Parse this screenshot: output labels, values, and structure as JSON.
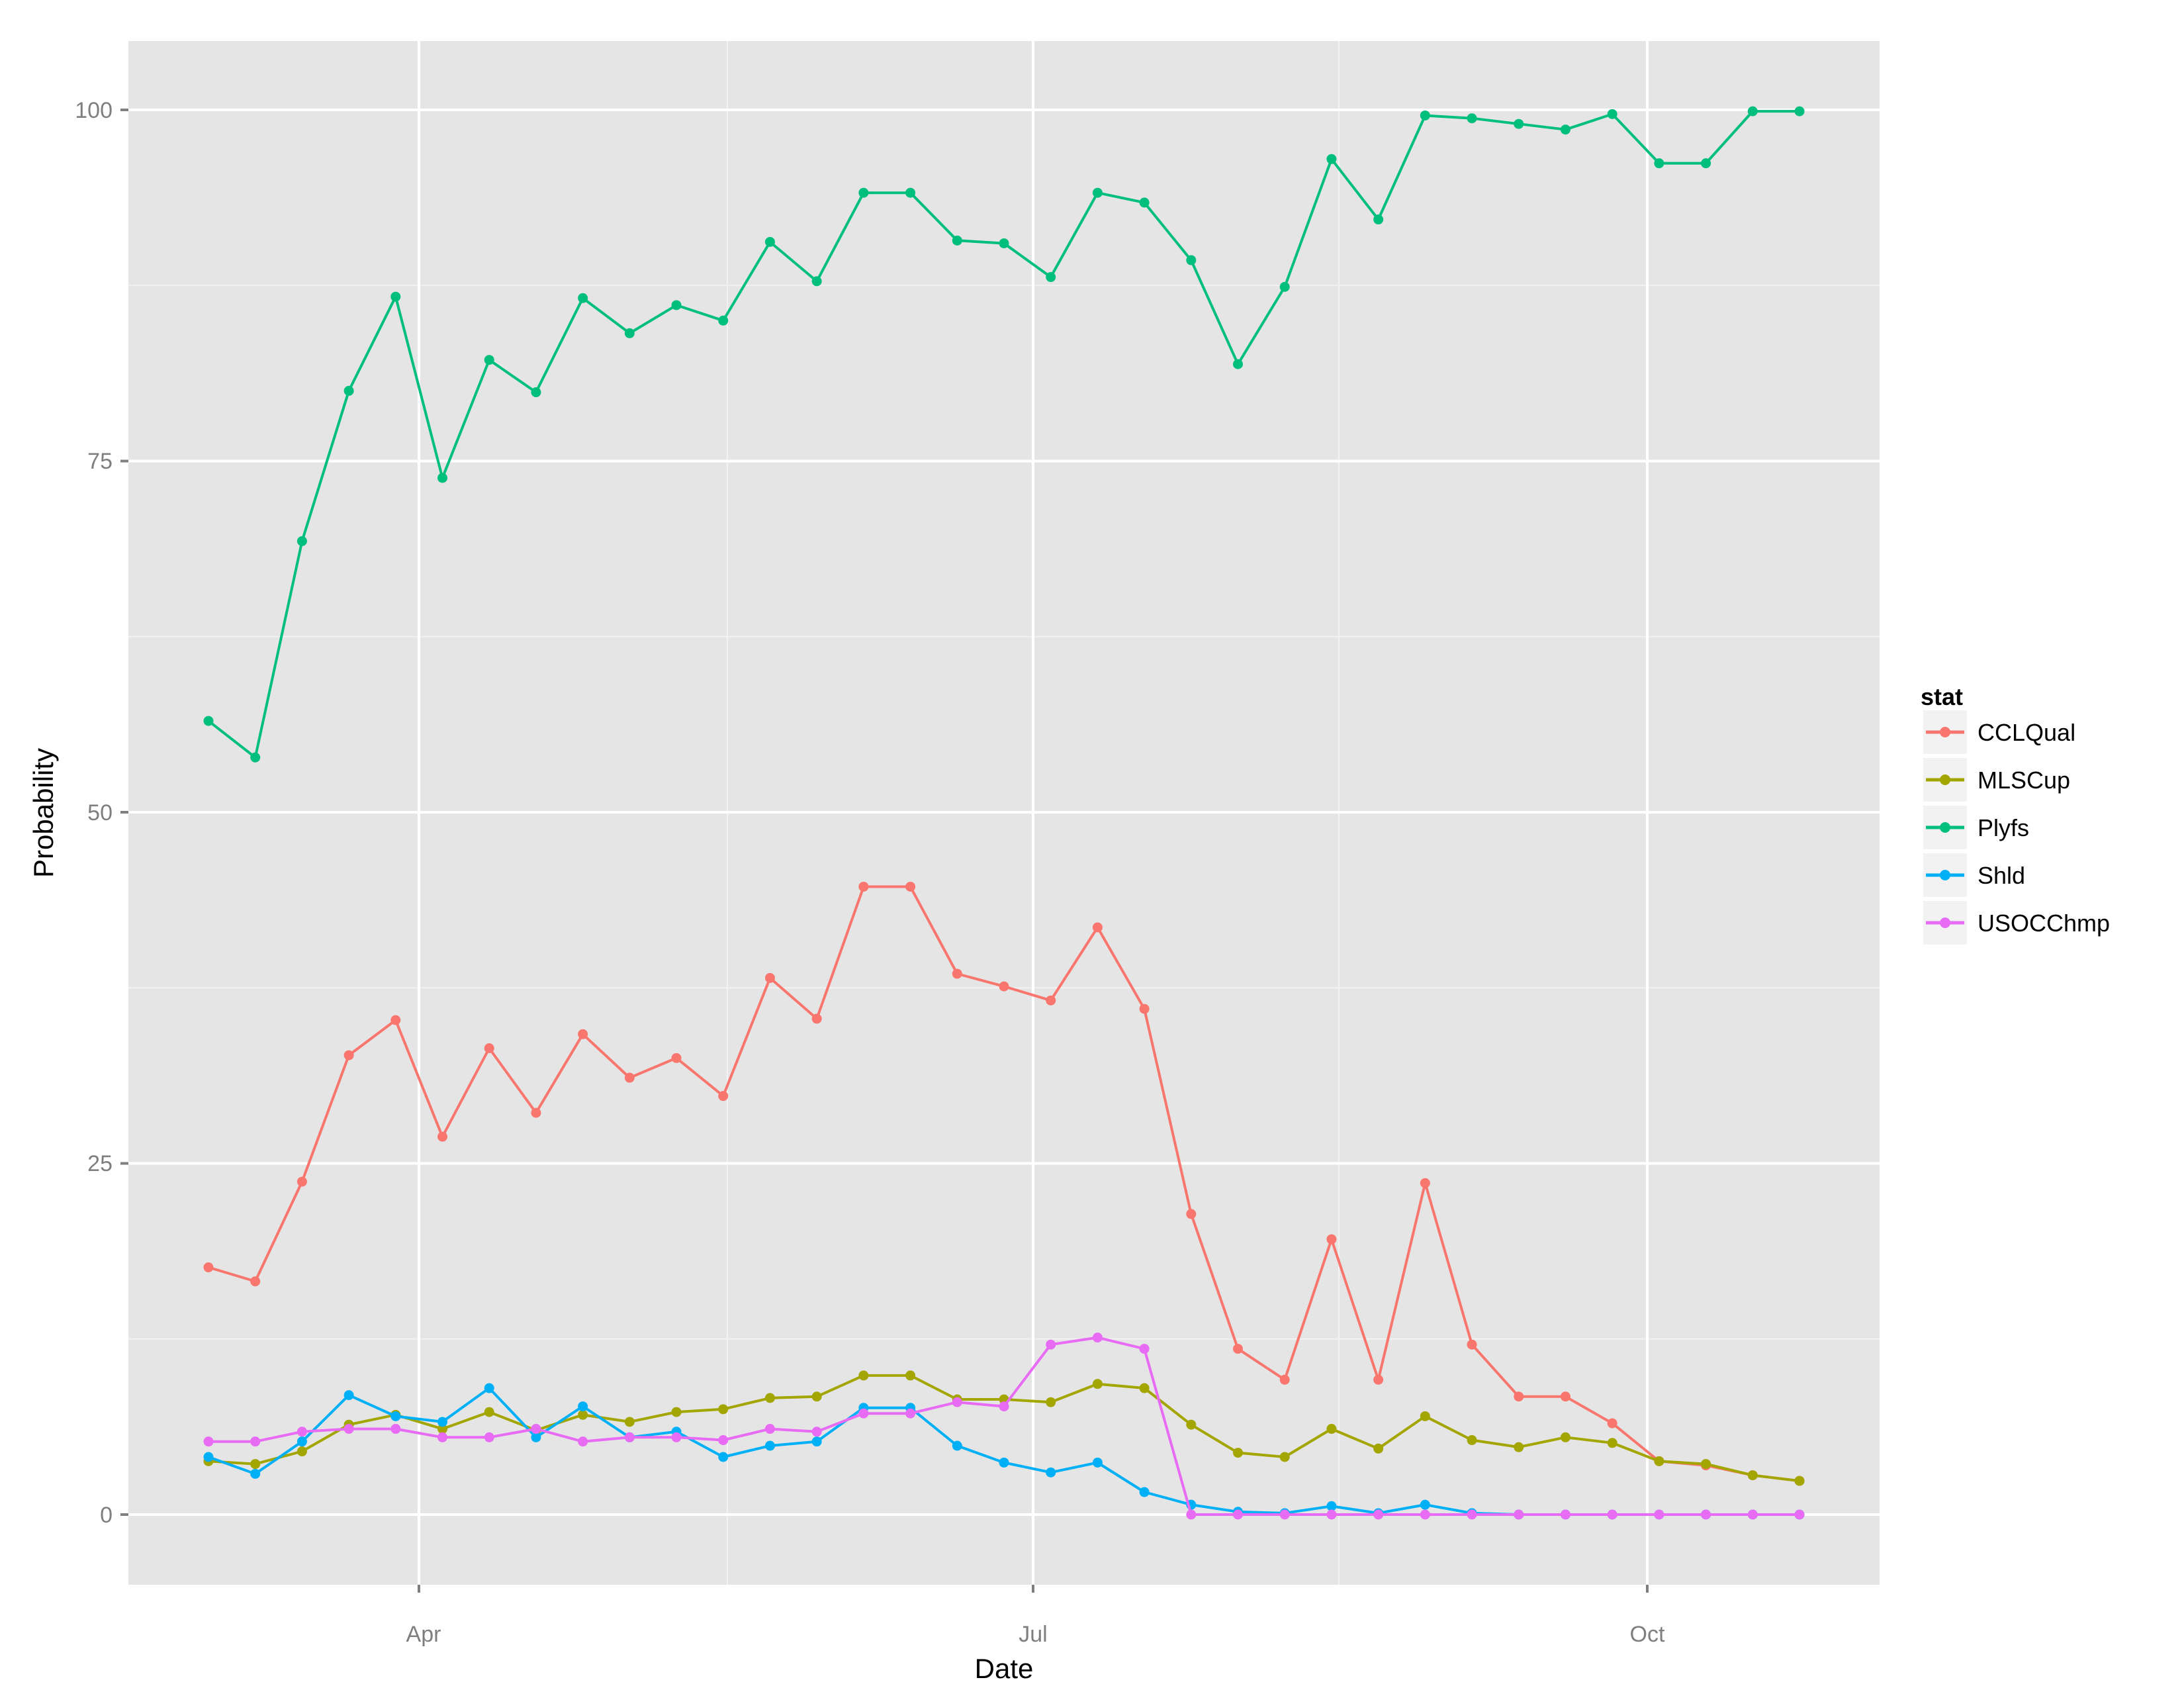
{
  "chart_data": {
    "type": "line",
    "title": "",
    "xlabel": "Date",
    "ylabel": "Probability",
    "ylim": [
      -5,
      105
    ],
    "y_ticks": [
      0,
      25,
      50,
      75,
      100
    ],
    "x_tick_labels": [
      "Apr",
      "Jul",
      "Oct"
    ],
    "grid": true,
    "legend_title": "stat",
    "legend_position": "right",
    "n_points": 35,
    "series": [
      {
        "name": "CCLQual",
        "color": "#F8766D",
        "values": [
          17.6,
          16.6,
          23.7,
          32.7,
          35.2,
          26.9,
          33.2,
          28.6,
          34.2,
          31.1,
          32.5,
          29.8,
          38.2,
          35.3,
          44.7,
          44.7,
          38.5,
          37.6,
          36.6,
          41.8,
          36.0,
          21.4,
          11.8,
          9.6,
          19.6,
          9.6,
          23.6,
          12.1,
          8.4,
          8.4,
          6.5,
          3.8,
          3.5,
          2.8,
          2.4
        ]
      },
      {
        "name": "MLSCup",
        "color": "#A3A500",
        "values": [
          3.8,
          3.6,
          4.5,
          6.4,
          7.1,
          6.1,
          7.3,
          6.0,
          7.1,
          6.6,
          7.3,
          7.5,
          8.3,
          8.4,
          9.9,
          9.9,
          8.2,
          8.2,
          8.0,
          9.3,
          9.0,
          6.4,
          4.4,
          4.1,
          6.1,
          4.7,
          7.0,
          5.3,
          4.8,
          5.5,
          5.1,
          3.8,
          3.6,
          2.8,
          2.4
        ]
      },
      {
        "name": "Plyfs",
        "color": "#00BF7D",
        "values": [
          56.5,
          53.9,
          69.3,
          80.0,
          86.7,
          73.8,
          82.2,
          79.9,
          86.6,
          84.1,
          86.1,
          85.0,
          90.6,
          87.8,
          94.1,
          94.1,
          90.7,
          90.5,
          88.1,
          94.1,
          93.4,
          89.3,
          81.9,
          87.4,
          96.5,
          92.2,
          99.6,
          99.4,
          99.0,
          98.6,
          99.7,
          96.2,
          96.2,
          99.9,
          99.9
        ]
      },
      {
        "name": "Shld",
        "color": "#00B0F6",
        "values": [
          4.1,
          2.9,
          5.2,
          8.5,
          7.0,
          6.6,
          9.0,
          5.5,
          7.7,
          5.5,
          5.9,
          4.1,
          4.9,
          5.2,
          7.6,
          7.6,
          4.9,
          3.7,
          3.0,
          3.7,
          1.6,
          0.7,
          0.2,
          0.1,
          0.6,
          0.1,
          0.7,
          0.1,
          0,
          0,
          0,
          0,
          0,
          0,
          0
        ]
      },
      {
        "name": "USOCChmp",
        "color": "#E76BF3",
        "values": [
          5.2,
          5.2,
          5.9,
          6.1,
          6.1,
          5.5,
          5.5,
          6.1,
          5.2,
          5.5,
          5.5,
          5.3,
          6.1,
          5.9,
          7.2,
          7.2,
          8.0,
          7.7,
          12.1,
          12.6,
          11.8,
          0,
          0,
          0,
          0,
          0,
          0,
          0,
          0,
          0,
          0,
          0,
          0,
          0,
          0
        ]
      }
    ]
  },
  "axes": {
    "x_title": "Date",
    "y_title": "Probability",
    "y_tick_labels": [
      "0",
      "25",
      "50",
      "75",
      "100"
    ],
    "x_tick_labels": [
      "Apr",
      "Jul",
      "Oct"
    ]
  },
  "legend": {
    "title": "stat",
    "items": [
      "CCLQual",
      "MLSCup",
      "Plyfs",
      "Shld",
      "USOCChmp"
    ]
  },
  "colors": {
    "panel_bg": "#E5E5E5",
    "grid_major": "#FFFFFF",
    "grid_minor": "#F2F2F2",
    "tick": "#7F7F7F",
    "legend_key_bg": "#F2F2F2"
  }
}
